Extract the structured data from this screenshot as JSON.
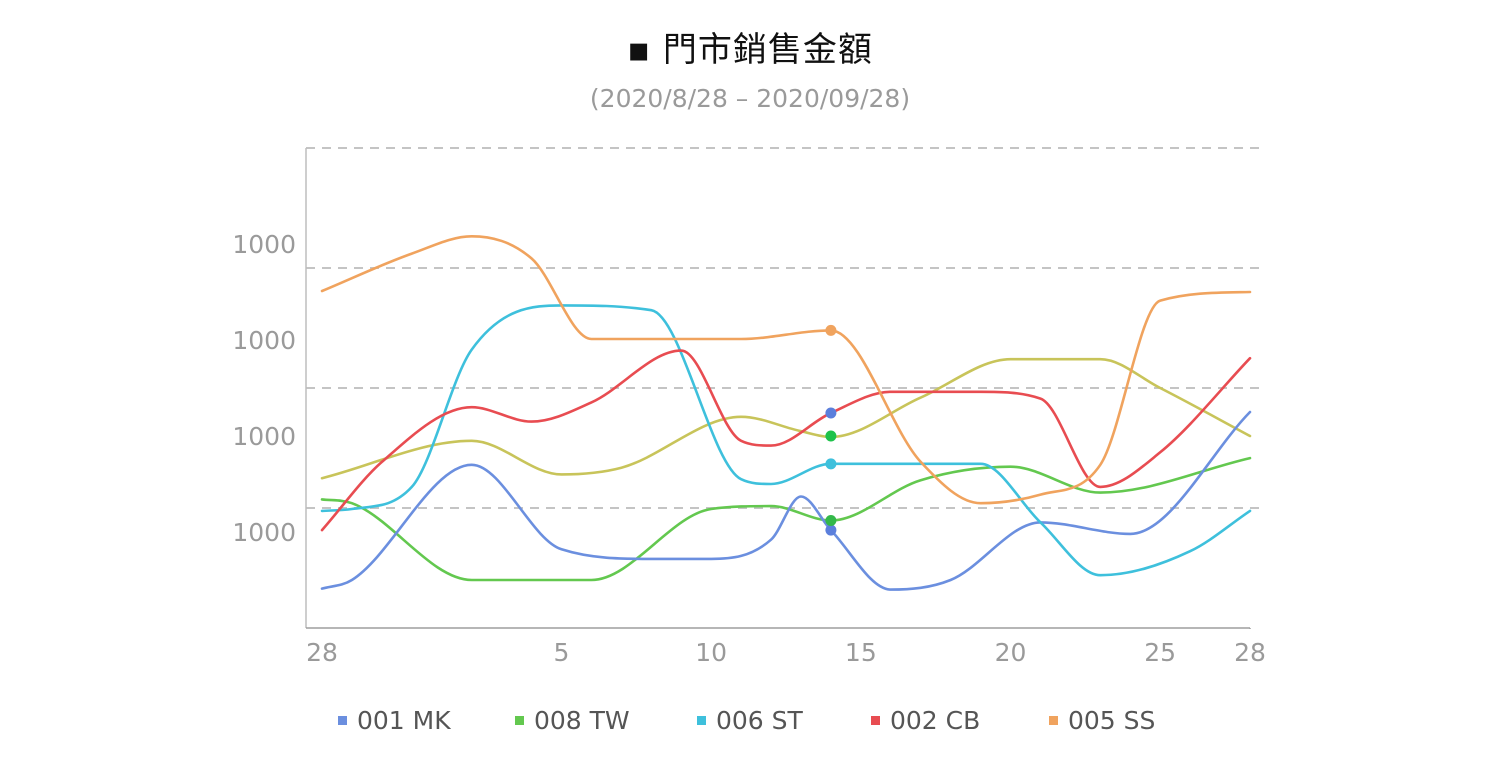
{
  "chart_data": {
    "type": "line",
    "title": "▪ 門市銷售金額",
    "subtitle": "(2020/8/28 – 2020/09/28)",
    "x_tick_labels": [
      "28",
      "5",
      "10",
      "15",
      "20",
      "25",
      "28"
    ],
    "x_ticks_day_index": [
      0,
      8,
      13,
      18,
      23,
      28,
      31
    ],
    "x_range": [
      0,
      31
    ],
    "y_tick_labels": [
      "1000",
      "1000",
      "1000",
      "1000"
    ],
    "y_ticks_value": [
      1,
      2,
      3,
      4
    ],
    "y_range": [
      0,
      5
    ],
    "grid": "horizontal dashed",
    "legend_position": "bottom",
    "highlight_day_index": 17,
    "series": [
      {
        "name": "001 MK",
        "color": "#6b8fdf",
        "x": [
          0,
          1,
          5,
          8,
          11,
          13,
          15,
          16,
          17,
          19,
          21,
          24,
          27,
          31
        ],
        "y": [
          0.41,
          0.5,
          1.7,
          0.82,
          0.72,
          0.72,
          0.92,
          1.37,
          1.02,
          0.4,
          0.5,
          1.1,
          0.98,
          2.25
        ]
      },
      {
        "name": "008 TW",
        "color": "#63c84f",
        "x": [
          0,
          1,
          5,
          9,
          13,
          15,
          17,
          20,
          23,
          26,
          31
        ],
        "y": [
          1.34,
          1.3,
          0.5,
          0.5,
          1.24,
          1.27,
          1.12,
          1.54,
          1.68,
          1.41,
          1.77
        ]
      },
      {
        "name": "006 ST",
        "color": "#3ec0dc",
        "x": [
          0,
          1,
          3,
          5,
          8,
          11,
          14,
          15,
          17,
          20,
          22,
          24,
          26,
          29,
          31
        ],
        "y": [
          1.22,
          1.24,
          1.47,
          2.9,
          3.36,
          3.31,
          1.55,
          1.5,
          1.71,
          1.71,
          1.71,
          1.1,
          0.55,
          0.8,
          1.22
        ]
      },
      {
        "name": "002 CB",
        "color": "#e84c51",
        "x": [
          0,
          2,
          5,
          7,
          9,
          12,
          14,
          15,
          17,
          19,
          22,
          24,
          26,
          28,
          31
        ],
        "y": [
          1.02,
          1.73,
          2.3,
          2.15,
          2.35,
          2.89,
          1.95,
          1.9,
          2.24,
          2.46,
          2.46,
          2.39,
          1.47,
          1.83,
          2.81
        ]
      },
      {
        "name": "005 SS",
        "color": "#f0a35e",
        "x": [
          0,
          3,
          5,
          7,
          9,
          12,
          14,
          17,
          20,
          22,
          24,
          26,
          28,
          31
        ],
        "y": [
          3.51,
          3.9,
          4.08,
          3.85,
          3.01,
          3.01,
          3.01,
          3.1,
          1.73,
          1.3,
          1.39,
          1.7,
          3.41,
          3.5
        ]
      },
      {
        "name": "",
        "color": "#c8c45a",
        "x": [
          0,
          5,
          8,
          10,
          14,
          16,
          17,
          20,
          23,
          26,
          28,
          31
        ],
        "y": [
          1.56,
          1.95,
          1.6,
          1.67,
          2.2,
          2.05,
          1.99,
          2.4,
          2.8,
          2.8,
          2.5,
          2.0
        ]
      }
    ]
  }
}
